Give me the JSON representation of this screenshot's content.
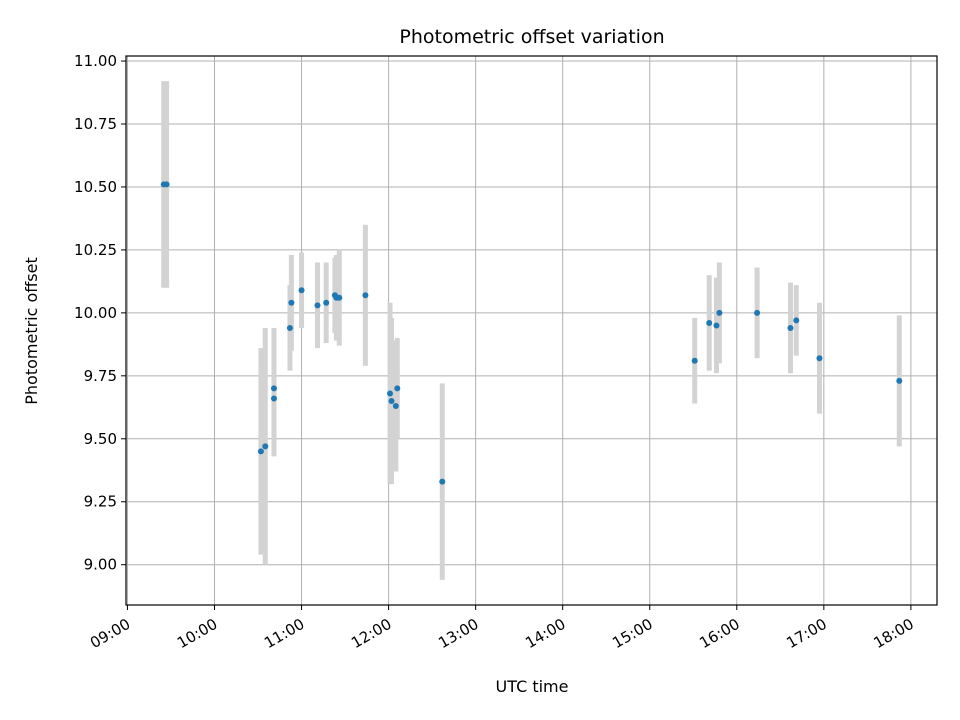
{
  "chart_data": {
    "type": "scatter",
    "title": "Photometric offset variation",
    "xlabel": "UTC time",
    "ylabel": "Photometric offset",
    "grid": true,
    "xlim": [
      "08:59",
      "18:18"
    ],
    "ylim": [
      8.84,
      11.02
    ],
    "x_ticks": [
      "09:00",
      "10:00",
      "11:00",
      "12:00",
      "13:00",
      "14:00",
      "15:00",
      "16:00",
      "17:00",
      "18:00"
    ],
    "y_ticks": [
      9.0,
      9.25,
      9.5,
      9.75,
      10.0,
      10.25,
      10.5,
      10.75,
      11.0
    ],
    "y_tick_labels": [
      "9.00",
      "9.25",
      "9.50",
      "9.75",
      "10.00",
      "10.25",
      "10.50",
      "10.75",
      "11.00"
    ],
    "marker_color": "#1f77b4",
    "errorbar_color": "#d3d3d3",
    "points": [
      {
        "x": "09:25",
        "y": 10.51,
        "err": 0.41
      },
      {
        "x": "09:27",
        "y": 10.51,
        "err": 0.41
      },
      {
        "x": "10:32",
        "y": 9.45,
        "err": 0.41
      },
      {
        "x": "10:35",
        "y": 9.47,
        "err": 0.47
      },
      {
        "x": "10:41",
        "y": 9.7,
        "err": 0.24
      },
      {
        "x": "10:41",
        "y": 9.66,
        "err": 0.23
      },
      {
        "x": "10:52",
        "y": 9.94,
        "err": 0.17
      },
      {
        "x": "10:53",
        "y": 10.04,
        "err": 0.19
      },
      {
        "x": "11:00",
        "y": 10.09,
        "err": 0.15
      },
      {
        "x": "11:11",
        "y": 10.03,
        "err": 0.17
      },
      {
        "x": "11:17",
        "y": 10.04,
        "err": 0.16
      },
      {
        "x": "11:23",
        "y": 10.07,
        "err": 0.15
      },
      {
        "x": "11:24",
        "y": 10.06,
        "err": 0.17
      },
      {
        "x": "11:26",
        "y": 10.06,
        "err": 0.19
      },
      {
        "x": "11:44",
        "y": 10.07,
        "err": 0.28
      },
      {
        "x": "12:01",
        "y": 9.68,
        "err": 0.36
      },
      {
        "x": "12:02",
        "y": 9.65,
        "err": 0.33
      },
      {
        "x": "12:05",
        "y": 9.63,
        "err": 0.26
      },
      {
        "x": "12:06",
        "y": 9.7,
        "err": 0.2
      },
      {
        "x": "12:37",
        "y": 9.33,
        "err": 0.39
      },
      {
        "x": "15:31",
        "y": 9.81,
        "err": 0.17
      },
      {
        "x": "15:41",
        "y": 9.96,
        "err": 0.19
      },
      {
        "x": "15:46",
        "y": 9.95,
        "err": 0.19
      },
      {
        "x": "15:48",
        "y": 10.0,
        "err": 0.2
      },
      {
        "x": "16:14",
        "y": 10.0,
        "err": 0.18
      },
      {
        "x": "16:37",
        "y": 9.94,
        "err": 0.18
      },
      {
        "x": "16:41",
        "y": 9.97,
        "err": 0.14
      },
      {
        "x": "16:57",
        "y": 9.82,
        "err": 0.22
      },
      {
        "x": "17:52",
        "y": 9.73,
        "err": 0.26
      }
    ]
  }
}
